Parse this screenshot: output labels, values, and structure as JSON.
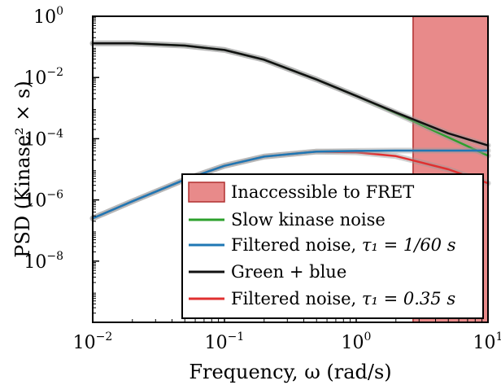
{
  "chart_data": {
    "type": "line",
    "x_scale": "log",
    "y_scale": "log",
    "xlim": [
      0.01,
      10
    ],
    "ylim": [
      1e-10,
      1
    ],
    "xlabel": "Frequency, ω (rad/s)",
    "ylabel": "PSD (Kinase² × s)",
    "x_ticks": [
      {
        "value": 0.01,
        "base": "10",
        "exp": "−2"
      },
      {
        "value": 0.1,
        "base": "10",
        "exp": "−1"
      },
      {
        "value": 1,
        "base": "10",
        "exp": "0"
      },
      {
        "value": 10,
        "base": "10",
        "exp": "1"
      }
    ],
    "y_ticks": [
      {
        "value": 1,
        "base": "10",
        "exp": "0"
      },
      {
        "value": 0.01,
        "base": "10",
        "exp": "−2"
      },
      {
        "value": 0.0001,
        "base": "10",
        "exp": "−4"
      },
      {
        "value": 1e-06,
        "base": "10",
        "exp": "−6"
      },
      {
        "value": 1e-08,
        "base": "10",
        "exp": "−8"
      }
    ],
    "shaded_region": {
      "label": "Inaccessible to FRET",
      "x_range": [
        2.7,
        10
      ],
      "color": "#e88a8a"
    },
    "series": [
      {
        "name": "Slow kinase noise",
        "color": "#2ca02c",
        "x": [
          0.01,
          0.02,
          0.05,
          0.1,
          0.2,
          0.5,
          1,
          2,
          5,
          10
        ],
        "y": [
          0.13,
          0.13,
          0.11,
          0.079,
          0.038,
          0.0086,
          0.0025,
          0.00068,
          0.00011,
          2.8e-05
        ]
      },
      {
        "name": "Filtered noise, τ₁ = 1/60 s",
        "color": "#1f77b4",
        "x": [
          0.01,
          0.02,
          0.05,
          0.1,
          0.2,
          0.5,
          1,
          2,
          5,
          10
        ],
        "y": [
          2.5e-07,
          9e-07,
          4.6e-06,
          1.3e-05,
          2.6e-05,
          3.8e-05,
          4e-05,
          4.1e-05,
          4.1e-05,
          4.1e-05
        ]
      },
      {
        "name": "Green + blue",
        "color": "#111111",
        "x": [
          0.01,
          0.02,
          0.05,
          0.1,
          0.2,
          0.5,
          1,
          2,
          5,
          10
        ],
        "y": [
          0.13,
          0.13,
          0.11,
          0.079,
          0.038,
          0.0086,
          0.0025,
          0.00072,
          0.00015,
          6e-05
        ]
      },
      {
        "name": "Filtered noise, τ₁ = 0.35 s",
        "color": "#e03030",
        "x": [
          0.01,
          0.02,
          0.05,
          0.1,
          0.2,
          0.5,
          1,
          2,
          5,
          10
        ],
        "y": [
          2.5e-07,
          9e-07,
          4.6e-06,
          1.3e-05,
          2.6e-05,
          3.8e-05,
          3.6e-05,
          2.7e-05,
          1e-05,
          3.5e-06
        ]
      }
    ],
    "legend": {
      "placement": "lower-right",
      "entries": [
        {
          "label": "Inaccessible to FRET",
          "kind": "patch",
          "color": "#e88a8a"
        },
        {
          "label_main": "Slow kinase noise",
          "label_math": "",
          "kind": "line",
          "color": "#2ca02c"
        },
        {
          "label_main": "Filtered noise, ",
          "label_math": "τ₁ = 1/60 s",
          "kind": "line",
          "color": "#1f77b4"
        },
        {
          "label_main": "Green + blue",
          "label_math": "",
          "kind": "line",
          "color": "#111111"
        },
        {
          "label_main": "Filtered noise, ",
          "label_math": "τ₁ = 0.35 s",
          "kind": "line",
          "color": "#e03030"
        }
      ]
    },
    "grid": false
  }
}
